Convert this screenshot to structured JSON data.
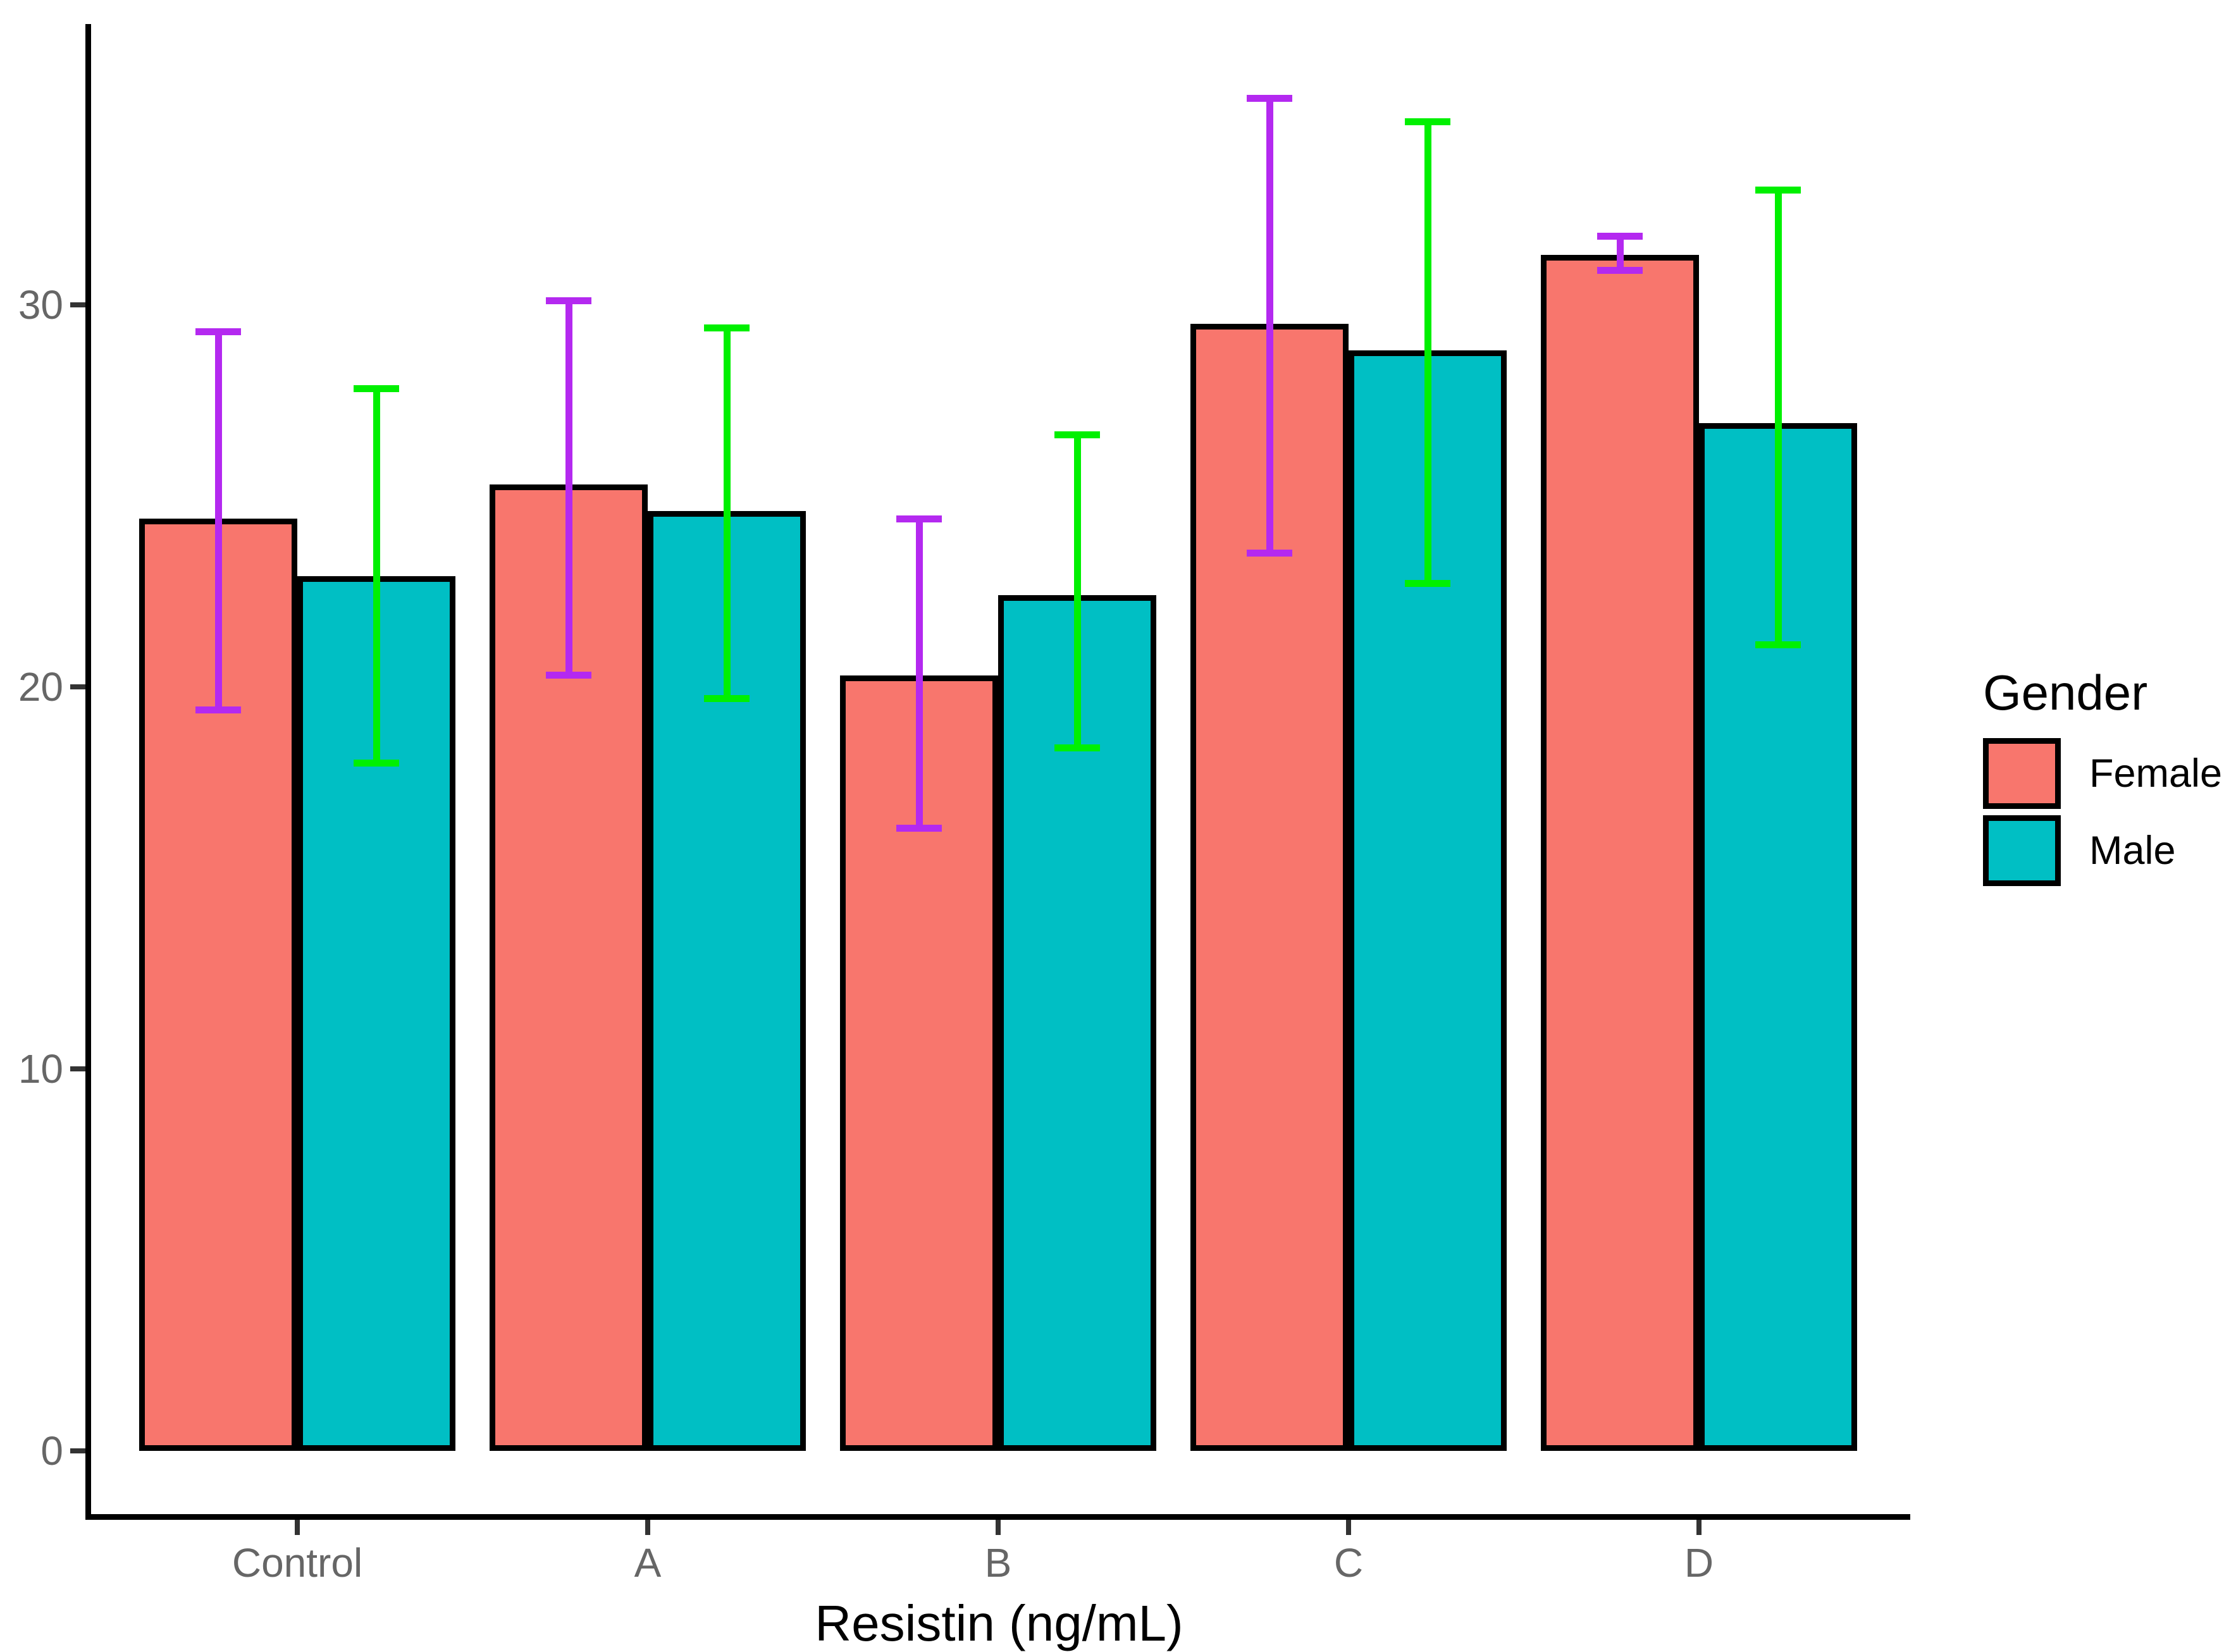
{
  "chart_data": {
    "type": "bar",
    "title": "",
    "xlabel": "Resistin (ng/mL)",
    "ylabel": "",
    "categories": [
      "Control",
      "A",
      "B",
      "C",
      "D"
    ],
    "y_ticks": [
      "0",
      "10",
      "20",
      "30"
    ],
    "y_tick_values": [
      0,
      10,
      20,
      30
    ],
    "ylim": [
      0,
      37.5
    ],
    "grid": false,
    "legend_position": "right",
    "series": [
      {
        "name": "Female",
        "fill": "#F8766D",
        "error_color": "#B429F0",
        "values": [
          24.4,
          25.3,
          20.3,
          29.5,
          31.3
        ],
        "error_low": [
          19.4,
          20.3,
          16.3,
          23.5,
          30.9
        ],
        "error_high": [
          29.3,
          30.1,
          24.4,
          35.4,
          31.8
        ]
      },
      {
        "name": "Male",
        "fill": "#00BFC4",
        "error_color": "#00F000",
        "values": [
          22.9,
          24.6,
          22.4,
          28.8,
          26.9
        ],
        "error_low": [
          18.0,
          19.7,
          18.4,
          22.7,
          21.1
        ],
        "error_high": [
          27.8,
          29.4,
          26.6,
          34.8,
          33.0
        ]
      }
    ],
    "axis_color": "#000000",
    "tick_label_color": "#666666"
  },
  "legend": {
    "title": "Gender",
    "entries": [
      "Female",
      "Male"
    ]
  }
}
